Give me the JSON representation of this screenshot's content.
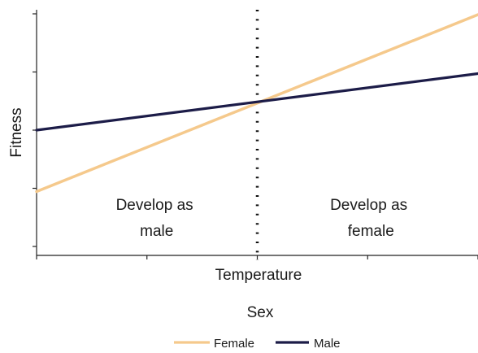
{
  "chart_data": {
    "type": "line",
    "title": "",
    "xlabel": "Temperature",
    "ylabel": "Fitness",
    "legend_title": "Sex",
    "legend_position": "bottom",
    "xlim": [
      0,
      1
    ],
    "ylim": [
      0,
      1
    ],
    "grid": false,
    "threshold": {
      "x": 0.5,
      "style": "dotted"
    },
    "regions": [
      {
        "lines": [
          "Develop as",
          "male"
        ],
        "side": "left"
      },
      {
        "lines": [
          "Develop as",
          "female"
        ],
        "side": "right"
      }
    ],
    "series": [
      {
        "name": "Female",
        "color": "#f5c98c",
        "x": [
          0,
          1
        ],
        "y": [
          0.26,
          0.98
        ]
      },
      {
        "name": "Male",
        "color": "#1c1c48",
        "x": [
          0,
          1
        ],
        "y": [
          0.51,
          0.74
        ]
      }
    ]
  }
}
